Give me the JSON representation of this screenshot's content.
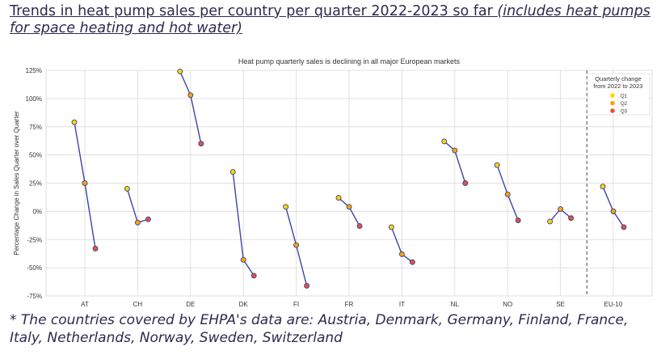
{
  "heading": {
    "main": "Trends in heat pump sales per country per quarter 2022-2023 so far ",
    "italic": "(includes heat pumps for space heating and hot water)"
  },
  "footnote": "* The countries covered by EHPA's data are: Austria, Denmark, Germany, Finland, France, Italy, Netherlands, Norway, Sweden, Switzerland",
  "chart_data": {
    "type": "line",
    "title": "Heat pump quarterly sales is declining in all major European markets",
    "xlabel": "",
    "ylabel": "Percentage Change in Sales Quarter over Quarter",
    "ylim": [
      -75,
      125
    ],
    "yticks": [
      "125%",
      "100%",
      "75%",
      "50%",
      "25%",
      "0%",
      "-25%",
      "-50%",
      "-75%"
    ],
    "ytick_values": [
      125,
      100,
      75,
      50,
      25,
      0,
      -25,
      -50,
      -75
    ],
    "grid": true,
    "categories": [
      "AT",
      "CH",
      "DE",
      "DK",
      "FI",
      "FR",
      "IT",
      "NL",
      "NO",
      "SE",
      "EU-10"
    ],
    "series": [
      {
        "name": "Q1",
        "color": "#FFD700",
        "values": [
          79,
          20,
          124,
          35,
          4,
          12,
          -14,
          62,
          41,
          -9,
          22
        ]
      },
      {
        "name": "Q2",
        "color": "#FFA500",
        "values": [
          25,
          -10,
          103,
          -43,
          -30,
          4,
          -38,
          54,
          15,
          2,
          0
        ]
      },
      {
        "name": "Q3",
        "color": "#E5533D",
        "values": [
          -33,
          -7,
          60,
          -57,
          -66,
          -13,
          -45,
          25,
          -8,
          -6,
          -14
        ]
      }
    ],
    "line_color": "#3a47a6",
    "separator_before": "EU-10",
    "legend": {
      "title": "Quarterly change\nfrom 2022 to 2023",
      "title_lines": [
        "Quarterly change",
        "from 2022 to 2023"
      ],
      "placement": "top-right"
    }
  }
}
